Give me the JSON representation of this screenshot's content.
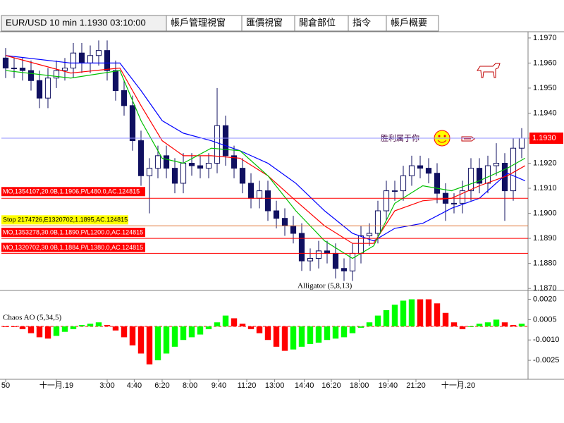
{
  "tabs": [
    "EUR/USD 10 min 1.1930 03:10:00",
    "帳戶管理視窗",
    "匯價視窗",
    "開倉部位",
    "指令",
    "帳戶概要"
  ],
  "chart_data": [
    {
      "type": "candlestick",
      "xlim": [
        -0.5,
        61.75
      ],
      "xticks": [
        {
          "value": 0,
          "label": "50"
        },
        {
          "value": 6,
          "label": "十一月.19"
        },
        {
          "value": 12,
          "label": "3:00"
        },
        {
          "value": 15.2,
          "label": "4:40"
        },
        {
          "value": 18.5,
          "label": "6:20"
        },
        {
          "value": 21.8,
          "label": "8:00"
        },
        {
          "value": 25.2,
          "label": "9:40"
        },
        {
          "value": 28.5,
          "label": "11:20"
        },
        {
          "value": 31.8,
          "label": "13:00"
        },
        {
          "value": 35.3,
          "label": "14:40"
        },
        {
          "value": 38.5,
          "label": "16:20"
        },
        {
          "value": 41.8,
          "label": "18:00"
        },
        {
          "value": 45.2,
          "label": "19:40"
        },
        {
          "value": 48.5,
          "label": "21:20"
        },
        {
          "value": 53.5,
          "label": "十一月.20"
        }
      ],
      "ylim": [
        1.18692,
        1.19725
      ],
      "yticks": [
        {
          "value": 1.197,
          "label": "1.1970"
        },
        {
          "value": 1.196,
          "label": "1.1960"
        },
        {
          "value": 1.195,
          "label": "1.1950"
        },
        {
          "value": 1.194,
          "label": "1.1940"
        },
        {
          "value": 1.193,
          "label": "1.1930"
        },
        {
          "value": 1.192,
          "label": "1.1920"
        },
        {
          "value": 1.191,
          "label": "1.1910"
        },
        {
          "value": 1.19,
          "label": "1.1900"
        },
        {
          "value": 1.189,
          "label": "1.1890"
        },
        {
          "value": 1.188,
          "label": "1.1880"
        },
        {
          "value": 1.187,
          "label": "1.1870"
        }
      ],
      "up_color": "#ffffff",
      "down_color": "#101060",
      "edge_color": "#101060",
      "open": [
        1.1962,
        1.1958,
        1.1958,
        1.1957,
        1.1953,
        1.1946,
        1.1954,
        1.1957,
        1.1958,
        1.1964,
        1.196,
        1.1963,
        1.1965,
        1.1957,
        1.1949,
        1.1943,
        1.1929,
        1.1915,
        1.1918,
        1.1923,
        1.1918,
        1.1912,
        1.192,
        1.1919,
        1.1918,
        1.192,
        1.1935,
        1.1923,
        1.1918,
        1.1912,
        1.1906,
        1.1909,
        1.1901,
        1.1898,
        1.1895,
        1.1892,
        1.1881,
        1.1882,
        1.1885,
        1.1884,
        1.1878,
        1.1877,
        1.1884,
        1.1891,
        1.1892,
        1.1901,
        1.1909,
        1.1909,
        1.1915,
        1.1919,
        1.1918,
        1.1916,
        1.1908,
        1.1904,
        1.1904,
        1.1909,
        1.1918,
        1.1912,
        1.1919,
        1.192,
        1.1909,
        1.1926
      ],
      "high": [
        1.1966,
        1.1962,
        1.1962,
        1.1961,
        1.1957,
        1.1958,
        1.1961,
        1.1962,
        1.1968,
        1.1968,
        1.1967,
        1.1969,
        1.1969,
        1.1961,
        1.1953,
        1.1947,
        1.1933,
        1.1922,
        1.1927,
        1.1927,
        1.1922,
        1.1924,
        1.1924,
        1.1923,
        1.1924,
        1.195,
        1.1939,
        1.1927,
        1.1922,
        1.1916,
        1.1913,
        1.1913,
        1.1905,
        1.1902,
        1.1899,
        1.1896,
        1.1886,
        1.1889,
        1.1889,
        1.1888,
        1.1882,
        1.1888,
        1.1895,
        1.1896,
        1.1905,
        1.1913,
        1.1913,
        1.1919,
        1.1923,
        1.1923,
        1.1922,
        1.192,
        1.1912,
        1.1908,
        1.1913,
        1.1922,
        1.1922,
        1.1923,
        1.1928,
        1.1924,
        1.193,
        1.1934
      ],
      "low": [
        1.1954,
        1.1954,
        1.1953,
        1.1949,
        1.1942,
        1.1942,
        1.195,
        1.1953,
        1.1954,
        1.1956,
        1.1956,
        1.1959,
        1.1953,
        1.1945,
        1.1939,
        1.1925,
        1.1911,
        1.19,
        1.1914,
        1.1914,
        1.1908,
        1.1908,
        1.1915,
        1.1914,
        1.1914,
        1.1916,
        1.1919,
        1.1914,
        1.1908,
        1.1902,
        1.1902,
        1.1897,
        1.1894,
        1.1891,
        1.1888,
        1.1877,
        1.1877,
        1.1878,
        1.188,
        1.1874,
        1.1873,
        1.1873,
        1.188,
        1.1887,
        1.1888,
        1.1897,
        1.1905,
        1.1905,
        1.1911,
        1.1914,
        1.1912,
        1.1904,
        1.1897,
        1.19,
        1.19,
        1.1905,
        1.1908,
        1.1908,
        1.1915,
        1.1897,
        1.1905,
        1.1922
      ],
      "close": [
        1.1958,
        1.1958,
        1.1957,
        1.1953,
        1.1946,
        1.1954,
        1.1957,
        1.1958,
        1.1964,
        1.196,
        1.1963,
        1.1965,
        1.1957,
        1.1949,
        1.1943,
        1.1929,
        1.1915,
        1.1918,
        1.1923,
        1.1918,
        1.1912,
        1.192,
        1.1919,
        1.1918,
        1.192,
        1.1935,
        1.1923,
        1.1918,
        1.1912,
        1.1906,
        1.1909,
        1.1901,
        1.1898,
        1.1895,
        1.1892,
        1.1881,
        1.1882,
        1.1885,
        1.1884,
        1.1878,
        1.1877,
        1.1884,
        1.1891,
        1.1892,
        1.1901,
        1.1909,
        1.1909,
        1.1915,
        1.1919,
        1.1918,
        1.1916,
        1.1908,
        1.1904,
        1.1904,
        1.1909,
        1.1918,
        1.1912,
        1.1919,
        1.192,
        1.1909,
        1.1926,
        1.193
      ],
      "series": [
        {
          "color": "#0000ff",
          "x": [
            0,
            7.7,
            13.5,
            16,
            18.5,
            21,
            24.3,
            27.7,
            31,
            34.3,
            37.7,
            41,
            43.5,
            46,
            49.3,
            52.7,
            56,
            59.3,
            61.4
          ],
          "values": [
            1.1963,
            1.196,
            1.196,
            1.1949,
            1.1937,
            1.1932,
            1.1929,
            1.1925,
            1.192,
            1.1912,
            1.1901,
            1.1892,
            1.1889,
            1.1894,
            1.1896,
            1.1902,
            1.1906,
            1.1916,
            1.1913
          ]
        },
        {
          "color": "#ff0000",
          "x": [
            0,
            7.7,
            13.5,
            16,
            18.5,
            21,
            24.3,
            27.7,
            31,
            34.3,
            37.7,
            41,
            43.5,
            46,
            49.3,
            52.7,
            56,
            59.3,
            61.4
          ],
          "values": [
            1.1963,
            1.1956,
            1.1958,
            1.1943,
            1.1929,
            1.1923,
            1.1923,
            1.1922,
            1.1915,
            1.1905,
            1.1895,
            1.1888,
            1.1888,
            1.1901,
            1.1905,
            1.1906,
            1.1911,
            1.1915,
            1.1919
          ]
        },
        {
          "color": "#00c000",
          "x": [
            0,
            7.7,
            13.5,
            16,
            18.5,
            21,
            24.3,
            27.7,
            31,
            34.3,
            37.7,
            41,
            43.5,
            46,
            49.3,
            52.7,
            56,
            59.3,
            61.4
          ],
          "values": [
            1.1957,
            1.1954,
            1.1957,
            1.1937,
            1.1922,
            1.192,
            1.1926,
            1.1925,
            1.1915,
            1.1901,
            1.1889,
            1.1882,
            1.1887,
            1.1904,
            1.1911,
            1.1909,
            1.1913,
            1.1918,
            1.1922
          ]
        }
      ],
      "orders": [
        {
          "label": "MO,1354107,20.0B,1.1906,P/L480.0,AC.124815",
          "price": 1.1906,
          "color": "#ff0000",
          "label_background": "#ff0000",
          "label_color": "#ffffff"
        },
        {
          "label": "Stop 2174726,E1320702,1.1895,AC.124815",
          "price": 1.1895,
          "color": "#e07030",
          "label_background": "#ffff00",
          "label_color": "#000000"
        },
        {
          "label": "MO,1353278,30.0B,1.1890,P/L1200.0,AC.124815",
          "price": 1.189,
          "color": "#ff0000",
          "label_background": "#ff0000",
          "label_color": "#ffffff"
        },
        {
          "label": "MO,1320702,30.0B,1.1884,P/L1380.0,AC.124815",
          "price": 1.1884,
          "color": "#ff0000",
          "label_background": "#ff0000",
          "label_color": "#ffffff"
        }
      ],
      "last_price": {
        "value": 1.193,
        "label": "1.1930"
      },
      "annotations": [
        "Alligator (5,8,13)",
        "胜利属于你"
      ]
    },
    {
      "type": "bar",
      "title": "Chaos AO (5,34,5)",
      "ylim": [
        -0.0039,
        0.0026
      ],
      "yticks": [
        {
          "value": 0.002,
          "label": "0.0020"
        },
        {
          "value": 0.0005,
          "label": "0.0005"
        },
        {
          "value": -0.001,
          "label": "-0.0010"
        },
        {
          "value": -0.0025,
          "label": "-0.0025"
        }
      ],
      "up_color": "#00ff00",
      "down_color": "#ff0000",
      "values": [
        0,
        0,
        -0.0002,
        -0.0005,
        -0.0008,
        -0.0009,
        -0.0007,
        -0.0004,
        -0.0002,
        0.0001,
        0.0002,
        0.0003,
        0.0001,
        -0.0003,
        -0.0008,
        -0.0014,
        -0.002,
        -0.0028,
        -0.0025,
        -0.002,
        -0.0015,
        -0.001,
        -0.0008,
        -0.0006,
        -0.0002,
        0.0003,
        0.0008,
        0.0006,
        0.0002,
        -0.0002,
        -0.0005,
        -0.001,
        -0.0015,
        -0.0018,
        -0.0017,
        -0.0015,
        -0.0013,
        -0.0012,
        -0.001,
        -0.0009,
        -0.0008,
        -0.0005,
        -0.0001,
        0.0003,
        0.0008,
        0.0012,
        0.0016,
        0.0019,
        0.002,
        0.002,
        0.002,
        0.0017,
        0.001,
        0.0003,
        -0.0002,
        0,
        0.0002,
        0.0003,
        0.0005,
        0.0003,
        0.0001,
        0.0002
      ]
    }
  ]
}
